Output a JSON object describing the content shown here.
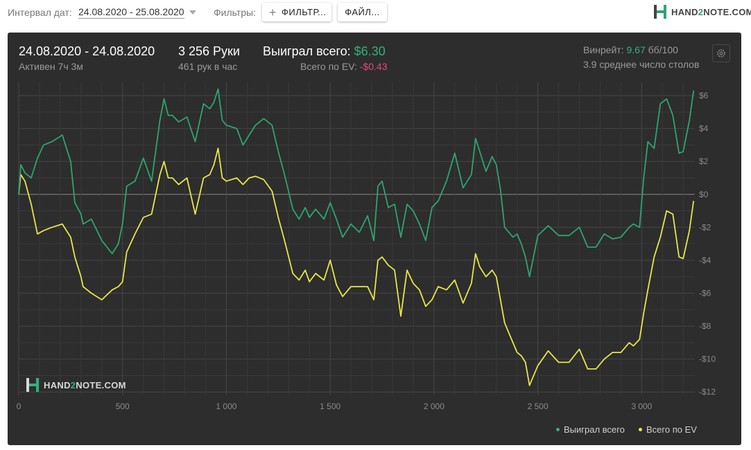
{
  "topbar": {
    "date_label": "Интервал дат:",
    "date_value": "24.08.2020 - 25.08.2020",
    "filters_label": "Фильтры:",
    "filter_button": "ФИЛЬТР...",
    "file_button": "ФАЙЛ...",
    "brand_prefix": "HAND",
    "brand_highlight": "2",
    "brand_suffix": "NOTE.COM"
  },
  "stats": {
    "date_range": "24.08.2020 - 24.08.2020",
    "active": "Активен 7ч 3м",
    "hands": "3 256 Руки",
    "hands_per_hour": "461 рук в час",
    "won_label": "Выиграл всего:",
    "won_value": "$6.30",
    "ev_label": "Всего по EV:",
    "ev_value": "-$0.43",
    "winrate_label": "Винрейт:",
    "winrate_value": "9.67",
    "winrate_unit": "бб/100",
    "tables": "3.9 среднее число столов"
  },
  "legend": {
    "won": "Выиграл всего",
    "ev": "Всего по EV"
  },
  "watermark": {
    "prefix": "HAND",
    "highlight": "2",
    "suffix": "NOTE.COM"
  },
  "colors": {
    "won_line": "#2fa56f",
    "ev_line": "#e8e64a",
    "panel_bg": "#2d2d2d",
    "grid": "#464646"
  },
  "chart_data": {
    "type": "line",
    "x_ticks": [
      0,
      500,
      1000,
      1500,
      2000,
      2500,
      3000
    ],
    "x_tick_labels": [
      "0",
      "500",
      "1 000",
      "1 500",
      "2 000",
      "2 500",
      "3 000"
    ],
    "y_ticks": [
      6,
      4,
      2,
      0,
      -2,
      -4,
      -6,
      -8,
      -10,
      -12
    ],
    "y_tick_labels": [
      "$6",
      "$4",
      "$2",
      "$0",
      "-$2",
      "-$4",
      "-$6",
      "-$8",
      "-$10",
      "-$12"
    ],
    "xlim": [
      0,
      3256
    ],
    "ylim": [
      -12.2,
      6.8
    ],
    "grid": true,
    "legend_position": "bottom-right",
    "series": [
      {
        "name": "Выиграл всего",
        "x": [
          0,
          10,
          30,
          60,
          90,
          120,
          160,
          210,
          250,
          270,
          300,
          310,
          350,
          400,
          450,
          480,
          500,
          520,
          560,
          600,
          640,
          680,
          700,
          720,
          740,
          770,
          810,
          850,
          890,
          920,
          940,
          960,
          980,
          1000,
          1050,
          1080,
          1110,
          1140,
          1180,
          1220,
          1250,
          1280,
          1320,
          1350,
          1380,
          1400,
          1430,
          1470,
          1500,
          1530,
          1560,
          1600,
          1640,
          1680,
          1710,
          1730,
          1750,
          1780,
          1810,
          1840,
          1870,
          1900,
          1930,
          1960,
          1990,
          2020,
          2060,
          2100,
          2140,
          2180,
          2200,
          2220,
          2250,
          2280,
          2300,
          2320,
          2340,
          2380,
          2400,
          2420,
          2440,
          2460,
          2500,
          2550,
          2600,
          2650,
          2700,
          2740,
          2780,
          2820,
          2860,
          2900,
          2940,
          2960,
          2990,
          3010,
          3030,
          3060,
          3090,
          3120,
          3150,
          3180,
          3200,
          3230,
          3250
        ],
        "y": [
          0,
          1.8,
          1.3,
          1.0,
          2.2,
          3.0,
          3.2,
          3.6,
          2.0,
          -0.5,
          -1.2,
          -1.8,
          -1.5,
          -2.8,
          -3.6,
          -3.0,
          -1.8,
          0.5,
          0.8,
          2.2,
          0.8,
          4.5,
          5.8,
          4.8,
          4.8,
          4.4,
          4.7,
          3.2,
          5.5,
          5.2,
          5.6,
          6.4,
          4.5,
          4.2,
          4.0,
          3.0,
          3.6,
          4.2,
          4.6,
          4.2,
          2.6,
          1.2,
          -0.9,
          -1.5,
          -0.8,
          -1.4,
          -0.9,
          -1.5,
          -0.5,
          -1.5,
          -2.6,
          -1.8,
          -2.3,
          -1.3,
          -2.8,
          0.5,
          0.8,
          -0.8,
          -0.6,
          -2.6,
          -0.6,
          -1.0,
          -1.8,
          -2.8,
          -0.8,
          -0.4,
          0.8,
          2.5,
          0.4,
          1.2,
          3.4,
          2.6,
          1.4,
          2.3,
          1.8,
          0.3,
          -2.0,
          -2.6,
          -2.4,
          -3.0,
          -3.8,
          -5.0,
          -2.5,
          -1.9,
          -2.5,
          -2.5,
          -2.0,
          -3.2,
          -3.2,
          -2.4,
          -2.7,
          -2.6,
          -2.0,
          -1.8,
          -2.0,
          1.0,
          3.2,
          2.8,
          5.5,
          5.8,
          4.8,
          2.5,
          2.6,
          4.5,
          6.3
        ]
      },
      {
        "name": "Всего по EV",
        "x": [
          0,
          10,
          30,
          60,
          90,
          120,
          160,
          210,
          250,
          270,
          300,
          310,
          350,
          400,
          450,
          480,
          500,
          520,
          560,
          600,
          640,
          680,
          700,
          720,
          740,
          770,
          810,
          850,
          890,
          920,
          940,
          960,
          980,
          1000,
          1050,
          1080,
          1110,
          1140,
          1180,
          1220,
          1250,
          1280,
          1320,
          1350,
          1380,
          1400,
          1430,
          1470,
          1500,
          1530,
          1560,
          1600,
          1640,
          1680,
          1710,
          1730,
          1750,
          1780,
          1810,
          1840,
          1870,
          1900,
          1930,
          1960,
          1990,
          2020,
          2060,
          2100,
          2140,
          2180,
          2200,
          2220,
          2250,
          2280,
          2300,
          2320,
          2340,
          2380,
          2400,
          2420,
          2440,
          2460,
          2500,
          2550,
          2600,
          2650,
          2700,
          2740,
          2780,
          2820,
          2860,
          2900,
          2940,
          2960,
          2990,
          3010,
          3030,
          3060,
          3090,
          3120,
          3150,
          3180,
          3200,
          3230,
          3250
        ],
        "y": [
          0,
          1.2,
          0.8,
          -0.6,
          -2.4,
          -2.2,
          -2.0,
          -1.8,
          -2.6,
          -3.8,
          -5.0,
          -5.6,
          -6.0,
          -6.4,
          -5.8,
          -5.6,
          -5.3,
          -3.5,
          -2.4,
          -1.4,
          -1.2,
          1.2,
          2.0,
          1.0,
          1.0,
          0.6,
          1.0,
          -1.2,
          1.0,
          1.2,
          1.8,
          2.8,
          1.0,
          0.8,
          1.0,
          0.6,
          1.0,
          1.1,
          0.9,
          0.2,
          -1.4,
          -2.8,
          -4.8,
          -5.2,
          -4.6,
          -5.3,
          -4.8,
          -5.2,
          -4.0,
          -5.5,
          -6.2,
          -5.6,
          -5.6,
          -5.6,
          -6.4,
          -4.0,
          -3.8,
          -4.3,
          -4.6,
          -7.4,
          -4.6,
          -5.4,
          -5.8,
          -6.8,
          -6.4,
          -5.6,
          -5.8,
          -5.2,
          -6.6,
          -5.4,
          -3.6,
          -4.4,
          -5.0,
          -4.6,
          -5.0,
          -6.4,
          -7.8,
          -9.0,
          -9.6,
          -9.8,
          -10.2,
          -11.6,
          -10.4,
          -9.5,
          -10.2,
          -10.2,
          -9.4,
          -10.6,
          -10.6,
          -10.0,
          -9.6,
          -9.6,
          -9.0,
          -9.2,
          -8.8,
          -7.2,
          -5.8,
          -3.8,
          -2.6,
          -1.0,
          -1.2,
          -3.8,
          -3.9,
          -2.2,
          -0.4
        ]
      }
    ]
  }
}
